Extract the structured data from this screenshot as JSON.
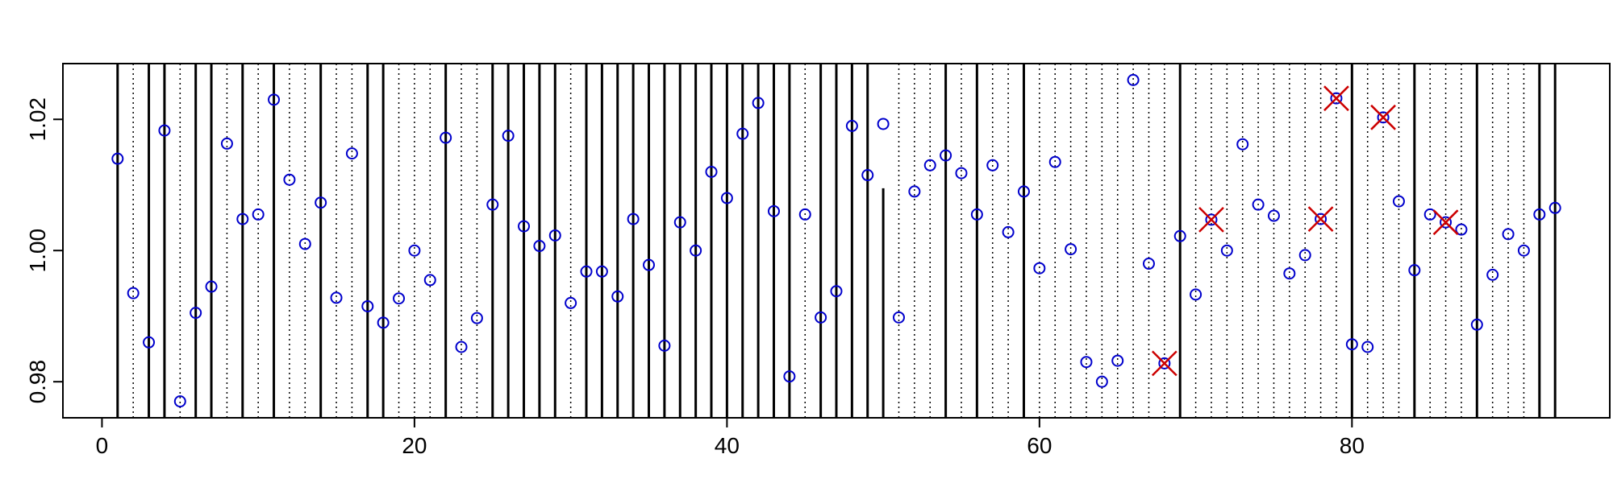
{
  "chart_data": {
    "type": "scatter",
    "title": "",
    "xlabel": "",
    "ylabel": "",
    "xlim": [
      -2.5,
      96.5
    ],
    "ylim": [
      0.9745,
      1.0285
    ],
    "x_ticks": [
      0,
      20,
      40,
      60,
      80
    ],
    "x_tick_labels": [
      "0",
      "20",
      "40",
      "60",
      "80"
    ],
    "y_ticks": [
      0.98,
      1.0,
      1.02
    ],
    "y_tick_labels": [
      "0.98",
      "1.00",
      "1.02"
    ],
    "grid": false,
    "marker_color": "#0000cc",
    "flag_color": "#cc0000",
    "line_color": "#000000",
    "solid_vlines": [
      1,
      3,
      4,
      6,
      7,
      9,
      11,
      14,
      17,
      18,
      22,
      25,
      26,
      27,
      28,
      29,
      31,
      32,
      33,
      34,
      35,
      36,
      37,
      38,
      39,
      40,
      41,
      42,
      43,
      44,
      46,
      47,
      48,
      49,
      54,
      56,
      59,
      69,
      80,
      84,
      88,
      92,
      93
    ],
    "half_vline": {
      "x": 50,
      "top": 1.0095
    },
    "dotted_vlines": [
      2,
      5,
      8,
      10,
      12,
      13,
      15,
      16,
      19,
      20,
      21,
      23,
      24,
      30,
      45,
      51,
      52,
      53,
      55,
      57,
      58,
      60,
      61,
      62,
      63,
      64,
      65,
      66,
      67,
      68,
      70,
      71,
      72,
      73,
      74,
      75,
      76,
      77,
      78,
      79,
      81,
      82,
      83,
      85,
      86,
      87,
      89,
      90,
      91
    ],
    "series": [
      {
        "marker": "circle",
        "x": [
          1,
          2,
          3,
          4,
          5,
          6,
          7,
          8,
          9,
          10,
          11,
          12,
          13,
          14,
          15,
          16,
          17,
          18,
          19,
          20,
          21,
          22,
          23,
          24,
          25,
          26,
          27,
          28,
          29,
          30,
          31,
          32,
          33,
          34,
          35,
          36,
          37,
          38,
          39,
          40,
          41,
          42,
          43,
          44,
          45,
          46,
          47,
          48,
          49,
          50,
          51,
          52,
          53,
          54,
          55,
          56,
          57,
          58,
          59,
          60,
          61,
          62,
          63,
          64,
          65,
          66,
          67,
          68,
          69,
          70,
          71,
          72,
          73,
          74,
          75,
          76,
          77,
          78,
          79,
          80,
          81,
          82,
          83,
          84,
          85,
          86,
          87,
          88,
          89,
          90,
          91,
          92,
          93
        ],
        "y": [
          1.014,
          0.9935,
          0.986,
          1.0183,
          0.977,
          0.9905,
          0.9945,
          1.0163,
          1.0048,
          1.0055,
          1.023,
          1.0108,
          1.001,
          1.0073,
          0.9928,
          1.0148,
          0.9915,
          0.989,
          0.9927,
          1.0,
          0.9955,
          1.0172,
          0.9853,
          0.9897,
          1.007,
          1.0175,
          1.0037,
          1.0007,
          1.0023,
          0.992,
          0.9968,
          0.9968,
          0.993,
          1.0048,
          0.9978,
          0.9855,
          1.0043,
          1.0,
          1.012,
          1.008,
          1.0178,
          1.0225,
          1.006,
          0.9808,
          1.0055,
          0.9898,
          0.9938,
          1.019,
          1.0115,
          1.0193,
          0.9898,
          1.009,
          1.013,
          1.0145,
          1.0118,
          1.0055,
          1.013,
          1.0028,
          1.009,
          0.9973,
          1.0135,
          1.0002,
          0.983,
          0.98,
          0.9832,
          1.026,
          0.998,
          0.9828,
          1.0022,
          0.9933,
          1.0047,
          1.0,
          1.0162,
          1.007,
          1.0053,
          0.9965,
          0.9993,
          1.0048,
          1.0232,
          0.9857,
          0.9853,
          1.0203,
          1.0075,
          0.997,
          1.0055,
          1.0043,
          1.0032,
          0.9887,
          0.9963,
          1.0025,
          1.0,
          1.0055,
          1.0065
        ]
      },
      {
        "marker": "x",
        "x": [
          68,
          71,
          78,
          79,
          82,
          86
        ],
        "y": [
          0.9828,
          1.0047,
          1.0048,
          1.0232,
          1.0203,
          1.0043
        ]
      }
    ]
  }
}
